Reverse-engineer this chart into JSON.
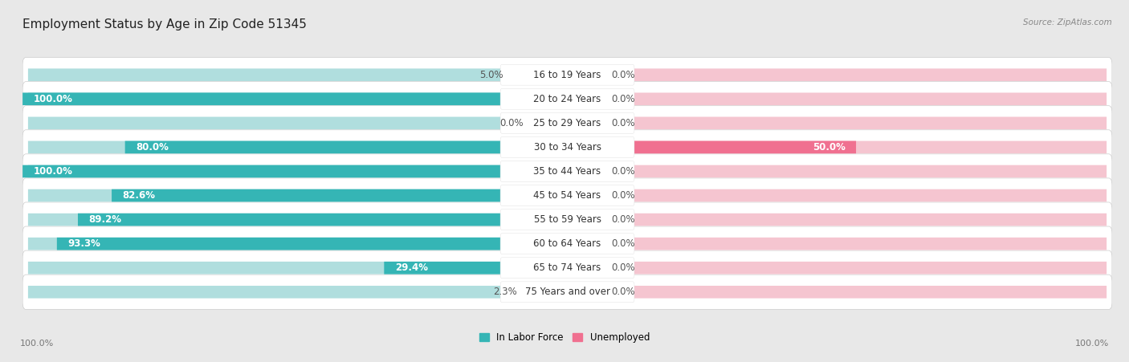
{
  "title": "Employment Status by Age in Zip Code 51345",
  "source": "Source: ZipAtlas.com",
  "age_groups": [
    "16 to 19 Years",
    "20 to 24 Years",
    "25 to 29 Years",
    "30 to 34 Years",
    "35 to 44 Years",
    "45 to 54 Years",
    "55 to 59 Years",
    "60 to 64 Years",
    "65 to 74 Years",
    "75 Years and over"
  ],
  "in_labor_force": [
    5.0,
    100.0,
    0.0,
    80.0,
    100.0,
    82.6,
    89.2,
    93.3,
    29.4,
    2.3
  ],
  "unemployed": [
    0.0,
    0.0,
    0.0,
    50.0,
    0.0,
    0.0,
    0.0,
    0.0,
    0.0,
    0.0
  ],
  "labor_color": "#35b5b5",
  "unemployed_color": "#f07090",
  "labor_color_light": "#b0dede",
  "unemployed_color_light": "#f5c5d0",
  "bg_color": "#e8e8e8",
  "row_bg": "#f5f5f5",
  "max_val": 100.0,
  "label_fontsize": 8.5,
  "title_fontsize": 11,
  "source_fontsize": 7.5,
  "axis_label_fontsize": 8
}
